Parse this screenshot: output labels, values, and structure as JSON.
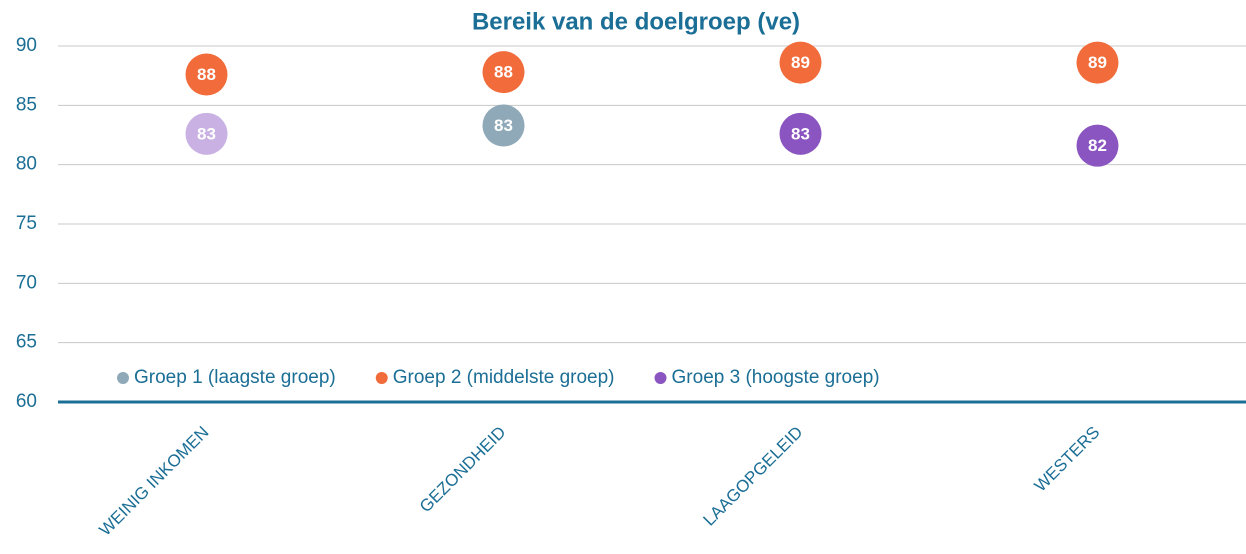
{
  "chart_data": {
    "type": "dot",
    "title": "Bereik van de doelgroep (ve)",
    "categories": [
      "WEINIG INKOMEN",
      "GEZONDHEID",
      "LAAGOPGELEID",
      "WESTERS"
    ],
    "series": [
      {
        "name": "Groep 1 (laagste groep)",
        "color": "#8fa9b8",
        "values": [
          null,
          83.3,
          null,
          null
        ],
        "value_labels": [
          null,
          "83",
          null,
          null
        ]
      },
      {
        "name": "Groep 2 (middelste groep)",
        "color": "#f26b3a",
        "values": [
          87.6,
          87.8,
          88.6,
          88.6
        ],
        "value_labels": [
          "88",
          "88",
          "89",
          "89"
        ]
      },
      {
        "name": "Groep 3 (hoogste groep)",
        "color": "#8a55c0",
        "values": [
          82.6,
          null,
          82.6,
          81.6
        ],
        "value_labels": [
          "83",
          null,
          "83",
          "82"
        ],
        "point_colors": [
          "#c9b2e3",
          null,
          null,
          null
        ]
      }
    ],
    "ylim": [
      60,
      90
    ],
    "yticks": [
      60,
      65,
      70,
      75,
      80,
      85,
      90
    ],
    "grid": true,
    "legend": "bottom"
  }
}
